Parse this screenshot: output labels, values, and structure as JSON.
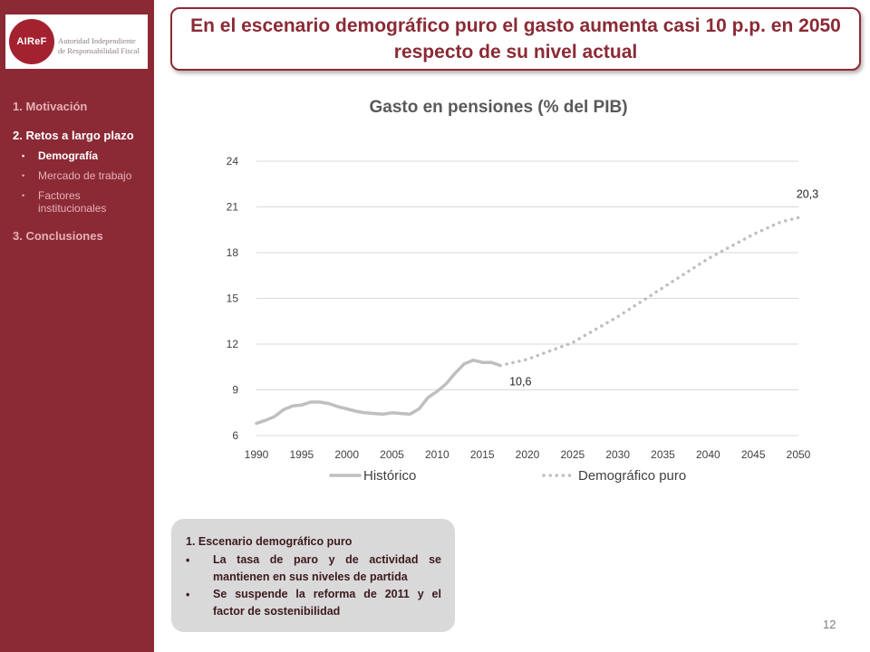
{
  "logo": {
    "mark": "AIReF",
    "line1": "Autoridad Independiente",
    "line2": "de Responsabilidad Fiscal"
  },
  "nav": {
    "item1": "1. Motivación",
    "item2": "2. Retos a largo plazo",
    "sub1": "Demografía",
    "sub2": "Mercado de trabajo",
    "sub3": "Factores institucionales",
    "item3": "3. Conclusiones"
  },
  "title": "En el escenario demográfico puro el gasto aumenta casi 10 p.p. en 2050 respecto de su nivel actual",
  "chart_data": {
    "type": "line",
    "title": "Gasto en pensiones (% del PIB)",
    "xlim": [
      1990,
      2050
    ],
    "ylim": [
      6,
      24
    ],
    "x_ticks": [
      1990,
      1995,
      2000,
      2005,
      2010,
      2015,
      2020,
      2025,
      2030,
      2035,
      2040,
      2045,
      2050
    ],
    "y_ticks": [
      6,
      9,
      12,
      15,
      18,
      21,
      24
    ],
    "grid": true,
    "legend_position": "bottom",
    "series": [
      {
        "name": "Histórico",
        "style": "solid",
        "color": "#bfbfbf",
        "x": [
          1990,
          1991,
          1992,
          1993,
          1994,
          1995,
          1996,
          1997,
          1998,
          1999,
          2000,
          2001,
          2002,
          2003,
          2004,
          2005,
          2006,
          2007,
          2008,
          2009,
          2010,
          2011,
          2012,
          2013,
          2014,
          2015,
          2016,
          2017
        ],
        "y": [
          6.8,
          7.0,
          7.25,
          7.7,
          7.95,
          8.0,
          8.2,
          8.2,
          8.1,
          7.9,
          7.75,
          7.6,
          7.5,
          7.45,
          7.4,
          7.5,
          7.45,
          7.4,
          7.75,
          8.5,
          8.9,
          9.4,
          10.1,
          10.7,
          10.95,
          10.8,
          10.8,
          10.6
        ]
      },
      {
        "name": "Demográfico puro",
        "style": "dotted",
        "color": "#bfbfbf",
        "x": [
          2017,
          2020,
          2025,
          2030,
          2035,
          2040,
          2045,
          2048,
          2050
        ],
        "y": [
          10.6,
          11.0,
          12.1,
          13.8,
          15.7,
          17.6,
          19.2,
          20.0,
          20.3
        ]
      }
    ],
    "annotations": [
      {
        "x": 2017,
        "y": 10.6,
        "text": "10,6"
      },
      {
        "x": 2050,
        "y": 20.3,
        "text": "20,3"
      }
    ]
  },
  "note": {
    "heading": "1.    Escenario demográfico puro",
    "bullet1": "La tasa de paro y de actividad se mantienen en sus niveles de partida",
    "bullet2": "Se suspende la reforma de 2011 y el factor de sostenibilidad"
  },
  "page_number": "12",
  "colors": {
    "brand": "#8b2a35",
    "series": "#bfbfbf"
  }
}
